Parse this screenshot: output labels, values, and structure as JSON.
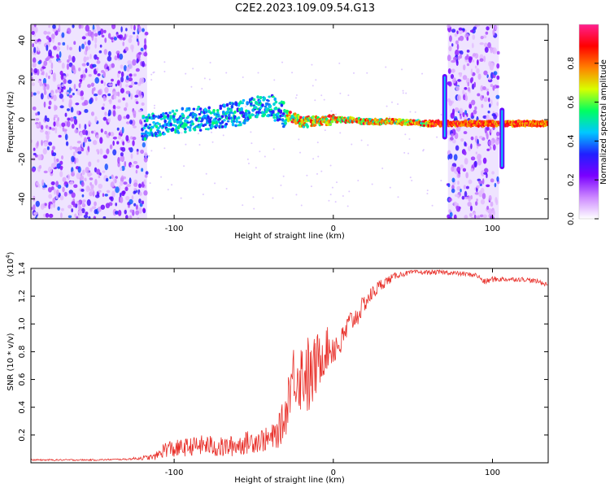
{
  "title": "C2E2.2023.109.09.54.G13",
  "chart_data": [
    {
      "type": "heatmap",
      "title": "C2E2.2023.109.09.54.G13",
      "xlabel": "Height of straight line (km)",
      "ylabel": "Frequency (Hz)",
      "xlim": [
        -190,
        135
      ],
      "ylim": [
        -50,
        48
      ],
      "xticks": [
        "-100",
        "0",
        "100"
      ],
      "yticks": [
        "40",
        "20",
        "0",
        "-20",
        "-40"
      ],
      "xtick_values": [
        -100,
        0,
        100
      ],
      "ytick_values": [
        40,
        20,
        0,
        -20,
        -40
      ],
      "noise_regions": [
        [
          -190,
          -117
        ],
        [
          72,
          104
        ]
      ],
      "signal_track": [
        [
          -120,
          -4
        ],
        [
          -110,
          -3
        ],
        [
          -100,
          -1
        ],
        [
          -90,
          0
        ],
        [
          -80,
          1
        ],
        [
          -70,
          2
        ],
        [
          -60,
          3
        ],
        [
          -50,
          5
        ],
        [
          -40,
          8
        ],
        [
          -35,
          4
        ],
        [
          -30,
          2
        ],
        [
          -25,
          1
        ],
        [
          -20,
          -1
        ],
        [
          -10,
          -1
        ],
        [
          0,
          0
        ],
        [
          10,
          0
        ],
        [
          20,
          -1
        ],
        [
          40,
          -1
        ],
        [
          60,
          -2
        ],
        [
          70,
          -2
        ],
        [
          104,
          -2
        ],
        [
          135,
          -2
        ]
      ],
      "spikes": [
        {
          "x": 70,
          "ymin": -10,
          "ymax": 23
        },
        {
          "x": 106,
          "ymin": -25,
          "ymax": 6
        }
      ],
      "colorbar": {
        "label": "Normalized spectral amplitude",
        "ticks": [
          "0.0",
          "0.2",
          "0.4",
          "0.6",
          "0.8"
        ],
        "tick_values": [
          0.0,
          0.2,
          0.4,
          0.6,
          0.8
        ],
        "range": [
          0,
          1
        ],
        "colors": [
          "#ffffff",
          "#cc88ff",
          "#7a00ff",
          "#2020ff",
          "#00c8ff",
          "#00ff60",
          "#d8ff00",
          "#ff8000",
          "#ff0000",
          "#ff2090"
        ]
      }
    },
    {
      "type": "line",
      "xlabel": "Height of straight line (km)",
      "ylabel": "SNR (10 * v/v)",
      "y_multiplier": "(x10",
      "y_multiplier_exp": "4",
      "y_multiplier_close": ")",
      "xlim": [
        -190,
        135
      ],
      "ylim": [
        0,
        1.4
      ],
      "xticks": [
        "-100",
        "0",
        "100"
      ],
      "yticks": [
        "1.4",
        "1.2",
        "1.0",
        "0.8",
        "0.6",
        "0.4",
        "0.2"
      ],
      "xtick_values": [
        -100,
        0,
        100
      ],
      "ytick_values": [
        1.4,
        1.2,
        1.0,
        0.8,
        0.6,
        0.4,
        0.2
      ],
      "series": [
        {
          "name": "SNR",
          "color": "#e8302a",
          "x": [
            -190,
            -170,
            -150,
            -130,
            -112,
            -105,
            -100,
            -90,
            -80,
            -70,
            -60,
            -50,
            -40,
            -35,
            -30,
            -28,
            -25,
            -20,
            -17,
            -15,
            -10,
            -5,
            0,
            5,
            10,
            15,
            20,
            25,
            30,
            40,
            50,
            60,
            70,
            80,
            90,
            95,
            100,
            110,
            120,
            130,
            135
          ],
          "values": [
            0.02,
            0.02,
            0.02,
            0.025,
            0.04,
            0.1,
            0.09,
            0.11,
            0.12,
            0.1,
            0.12,
            0.15,
            0.16,
            0.2,
            0.32,
            0.5,
            0.62,
            0.6,
            0.65,
            0.55,
            0.7,
            0.8,
            0.82,
            0.85,
            1.0,
            1.05,
            1.15,
            1.22,
            1.28,
            1.35,
            1.37,
            1.37,
            1.37,
            1.36,
            1.35,
            1.3,
            1.32,
            1.32,
            1.32,
            1.3,
            1.28
          ],
          "noise": [
            0.005,
            0.005,
            0.005,
            0.005,
            0.02,
            0.06,
            0.06,
            0.06,
            0.07,
            0.07,
            0.07,
            0.08,
            0.08,
            0.1,
            0.15,
            0.18,
            0.2,
            0.25,
            0.3,
            0.25,
            0.2,
            0.15,
            0.12,
            0.1,
            0.08,
            0.07,
            0.06,
            0.05,
            0.04,
            0.02,
            0.015,
            0.015,
            0.015,
            0.015,
            0.015,
            0.02,
            0.02,
            0.015,
            0.015,
            0.015,
            0.015
          ]
        }
      ]
    }
  ]
}
